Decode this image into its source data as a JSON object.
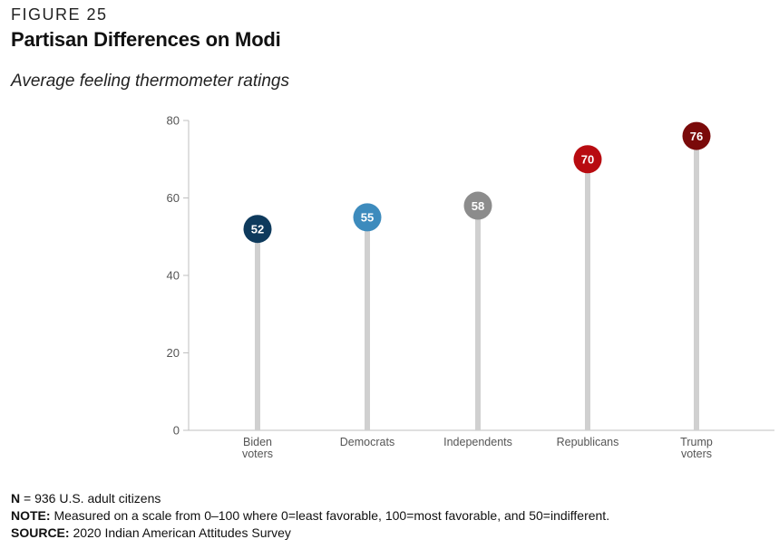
{
  "figure_label": "FIGURE 25",
  "title": "Partisan Differences on Modi",
  "subtitle": "Average feeling thermometer ratings",
  "chart_data": {
    "type": "lollipop",
    "categories": [
      [
        "Biden",
        "voters"
      ],
      [
        "Democrats"
      ],
      [
        "Independents"
      ],
      [
        "Republicans"
      ],
      [
        "Trump",
        "voters"
      ]
    ],
    "values": [
      52,
      55,
      58,
      70,
      76
    ],
    "colors": [
      "#0e3a5c",
      "#3d8bbd",
      "#8c8c8c",
      "#b80b10",
      "#7a0a0a"
    ],
    "stem_color": "#d0d0d0",
    "ylim": [
      0,
      80
    ],
    "yticks": [
      0,
      20,
      40,
      60,
      80
    ]
  },
  "notes": {
    "n_label": "N",
    "n_text": " = 936 U.S. adult citizens",
    "note_label": "NOTE:",
    "note_text": " Measured on a scale from 0–100 where 0=least favorable, 100=most favorable, and 50=indifferent.",
    "source_label": "SOURCE:",
    "source_text": " 2020 Indian American Attitudes Survey"
  }
}
